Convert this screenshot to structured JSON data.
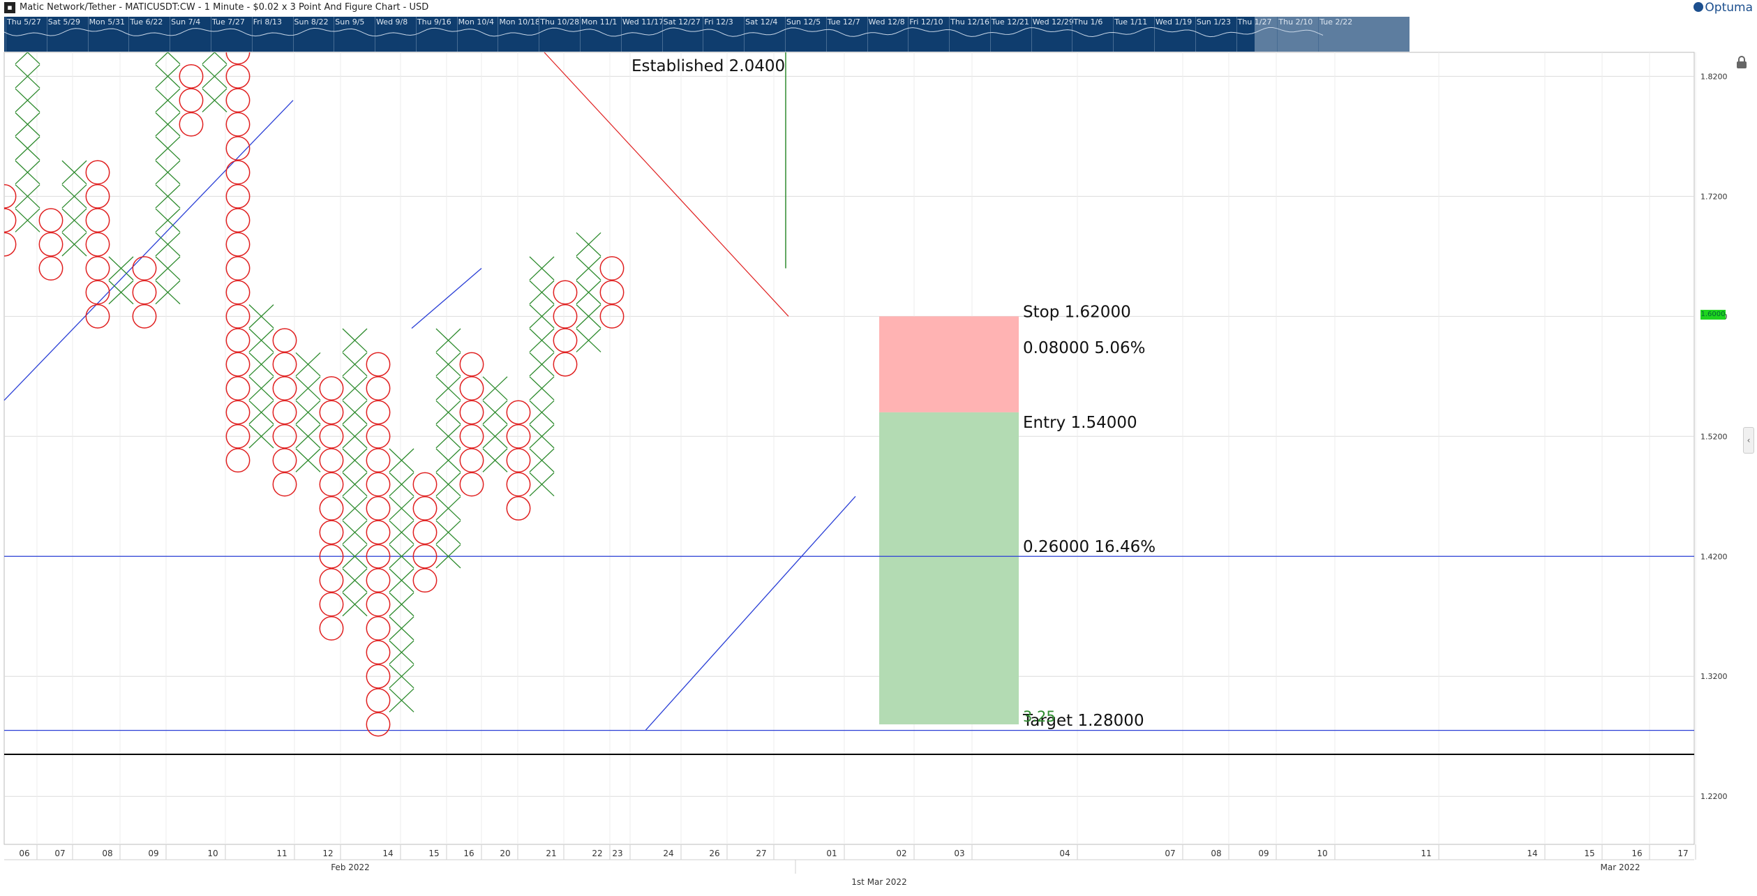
{
  "window": {
    "title": "Matic Network/Tether - MATICUSDT:CW - 1 Minute - $0.02 x 3 Point And Figure Chart - USD",
    "brand": "Optuma"
  },
  "navigator": {
    "labels": [
      "Thu 5/27",
      "Sat 5/29",
      "Mon 5/31",
      "Tue 6/22",
      "Sun 7/4",
      "Tue 7/27",
      "Fri 8/13",
      "Sun 8/22",
      "Sun 9/5",
      "Wed 9/8",
      "Thu 9/16",
      "Mon 10/4",
      "Mon 10/18",
      "Thu 10/28",
      "Mon 11/1",
      "Wed 11/17",
      "Sat 12/27",
      "Fri 12/3",
      "Sat 12/4",
      "Sun 12/5",
      "Tue 12/7",
      "Wed 12/8",
      "Fri 12/10",
      "Thu 12/16",
      "Tue 12/21",
      "Wed 12/29",
      "Thu 1/6",
      "Tue 1/11",
      "Wed 1/19",
      "Sun 1/23",
      "Thu 1/27",
      "Thu 2/10",
      "Tue 2/22"
    ]
  },
  "price_tag": "1.6000",
  "chart_data": {
    "type": "point-and-figure",
    "instrument": "MATICUSDT:CW",
    "box_size": 0.02,
    "reversal": 3,
    "ylim": [
      1.18,
      1.84
    ],
    "y_ticks": [
      "1.8200",
      "1.7200",
      "1.6200",
      "1.5200",
      "1.4200",
      "1.3200",
      "1.2200"
    ],
    "x_ticks": [
      "06",
      "07",
      "08",
      "09",
      "10",
      "11",
      "12",
      "14",
      "15",
      "16",
      "20",
      "21",
      "22",
      "23",
      "24",
      "26",
      "27",
      "01",
      "02",
      "03",
      "04",
      "07",
      "08",
      "09",
      "10",
      "11",
      "14",
      "15",
      "16",
      "17"
    ],
    "month_labels": [
      "Feb 2022",
      "Mar 2022"
    ],
    "date_label": "1st Mar 2022",
    "columns": [
      {
        "type": "O",
        "top": 1.72,
        "bottom": 1.68
      },
      {
        "type": "X",
        "bottom": 1.7,
        "top": 1.86
      },
      {
        "type": "O",
        "top": 1.7,
        "bottom": 1.66
      },
      {
        "type": "X",
        "bottom": 1.68,
        "top": 1.74
      },
      {
        "type": "O",
        "top": 1.74,
        "bottom": 1.62
      },
      {
        "type": "X",
        "bottom": 1.64,
        "top": 1.66
      },
      {
        "type": "O",
        "top": 1.66,
        "bottom": 1.62
      },
      {
        "type": "X",
        "bottom": 1.64,
        "top": 1.86
      },
      {
        "type": "O",
        "top": 1.82,
        "bottom": 1.78
      },
      {
        "type": "X",
        "bottom": 1.8,
        "top": 1.86
      },
      {
        "type": "O",
        "top": 1.84,
        "bottom": 1.5
      },
      {
        "type": "X",
        "bottom": 1.52,
        "top": 1.62
      },
      {
        "type": "O",
        "top": 1.6,
        "bottom": 1.48
      },
      {
        "type": "X",
        "bottom": 1.5,
        "top": 1.58
      },
      {
        "type": "O",
        "top": 1.56,
        "bottom": 1.36
      },
      {
        "type": "X",
        "bottom": 1.38,
        "top": 1.6
      },
      {
        "type": "O",
        "top": 1.58,
        "bottom": 1.28
      },
      {
        "type": "X",
        "bottom": 1.3,
        "top": 1.5
      },
      {
        "type": "O",
        "top": 1.48,
        "bottom": 1.4
      },
      {
        "type": "X",
        "bottom": 1.42,
        "top": 1.6
      },
      {
        "type": "O",
        "top": 1.58,
        "bottom": 1.48
      },
      {
        "type": "X",
        "bottom": 1.5,
        "top": 1.56
      },
      {
        "type": "O",
        "top": 1.54,
        "bottom": 1.46
      },
      {
        "type": "X",
        "bottom": 1.48,
        "top": 1.66
      },
      {
        "type": "O",
        "top": 1.64,
        "bottom": 1.58
      },
      {
        "type": "X",
        "bottom": 1.6,
        "top": 1.68
      },
      {
        "type": "O",
        "top": 1.66,
        "bottom": 1.62
      }
    ],
    "annotations": {
      "established": "Established 2.0400",
      "stop": "Stop   1.62000",
      "risk": "0.08000   5.06%",
      "entry": "Entry   1.54000",
      "reward": "0.26000   16.46%",
      "target": "Target   1.28000",
      "ratio": "3.25"
    },
    "trade": {
      "stop": 1.62,
      "entry": 1.54,
      "target": 1.28
    },
    "horizontal_lines": [
      1.42,
      1.275,
      1.255
    ],
    "colors": {
      "x": "#2e8b2e",
      "o": "#e02020",
      "trend": "#2a3fd6",
      "risk": "#ffb3b3",
      "reward": "#b3dbb3",
      "ratio": "#2e8b2e"
    }
  }
}
